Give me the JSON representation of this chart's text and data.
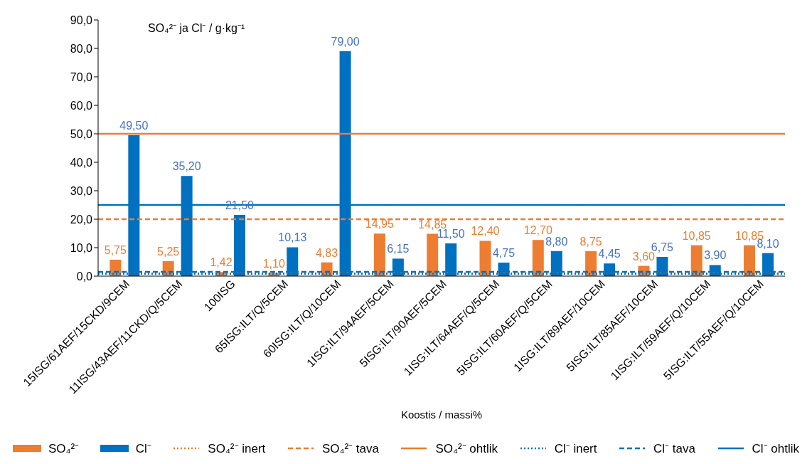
{
  "chart_data": {
    "type": "bar",
    "ylabel": "SO₄²⁻ ja Cl⁻ / g·kg⁻¹",
    "xlabel": "Koostis / massi%",
    "categories": [
      "15ISG/61AEF/15CKD/9CEM",
      "11ISG/43AEF/11CKD/Q/5CEM",
      "100ISG",
      "65ISG:ILT/Q/5CEM",
      "60ISG:ILT/Q/10CEM",
      "1ISG:ILT/94AEF/5CEM",
      "5ISG:ILT/90AEF/5CEM",
      "1ISG:ILT/64AEF/Q/5CEM",
      "5ISG:ILT/60AEF/Q/5CEM",
      "1ISG:ILT/89AEF/10CEM",
      "5ISG:ILT/85AEF/10CEM",
      "1ISG:ILT/59AEF/Q/10CEM",
      "5ISG:ILT/55AEF/Q/10CEM"
    ],
    "series": [
      {
        "name": "SO₄²⁻",
        "color": "#ed7d31",
        "values": [
          5.75,
          5.25,
          1.42,
          1.1,
          4.83,
          14.95,
          14.85,
          12.4,
          12.7,
          8.75,
          3.6,
          10.85,
          10.85
        ],
        "value_labels": [
          "5,75",
          "5,25",
          "1,42",
          "1,10",
          "4,83",
          "14,95",
          "14,85",
          "12,40",
          "12,70",
          "8,75",
          "3,60",
          "10,85",
          "10,85"
        ]
      },
      {
        "name": "Cl⁻",
        "color": "#0070c0",
        "values": [
          49.5,
          35.2,
          21.5,
          10.13,
          79.0,
          6.15,
          11.5,
          4.75,
          8.8,
          4.45,
          6.75,
          3.9,
          8.1
        ],
        "value_labels": [
          "49,50",
          "35,20",
          "21,50",
          "10,13",
          "79,00",
          "6,15",
          "11,50",
          "4,75",
          "8,80",
          "4,45",
          "6,75",
          "3,90",
          "8,10"
        ]
      }
    ],
    "ylim": [
      0,
      90
    ],
    "yticks": [
      {
        "value": 0,
        "label": "0,0"
      },
      {
        "value": 10,
        "label": "10,0"
      },
      {
        "value": 20,
        "label": "20,0"
      },
      {
        "value": 30,
        "label": "30,0"
      },
      {
        "value": 40,
        "label": "40,0"
      },
      {
        "value": 50,
        "label": "50,0"
      },
      {
        "value": 60,
        "label": "60,0"
      },
      {
        "value": 70,
        "label": "70,0"
      },
      {
        "value": 80,
        "label": "80,0"
      },
      {
        "value": 90,
        "label": "90,0"
      }
    ],
    "ref_lines": [
      {
        "axis": "y",
        "value": 1.0,
        "label": "SO₄²⁻ inert",
        "color": "#ed7d31",
        "line_style": "dotted"
      },
      {
        "axis": "y",
        "value": 20,
        "label": "SO₄²⁻ tava",
        "color": "#ed7d31",
        "line_style": "dashed"
      },
      {
        "axis": "y",
        "value": 50,
        "label": "SO₄²⁻ ohtlik",
        "color": "#ed7d31",
        "line_style": "solid"
      },
      {
        "axis": "y",
        "value": 0.8,
        "label": "Cl⁻ inert",
        "color": "#0070c0",
        "line_style": "dotted"
      },
      {
        "axis": "y",
        "value": 1.5,
        "label": "Cl⁻ tava",
        "color": "#0070c0",
        "line_style": "dashed"
      },
      {
        "axis": "y",
        "value": 25,
        "label": "Cl⁻ ohtlik",
        "color": "#0070c0",
        "line_style": "solid"
      }
    ],
    "legend": "bottom"
  }
}
